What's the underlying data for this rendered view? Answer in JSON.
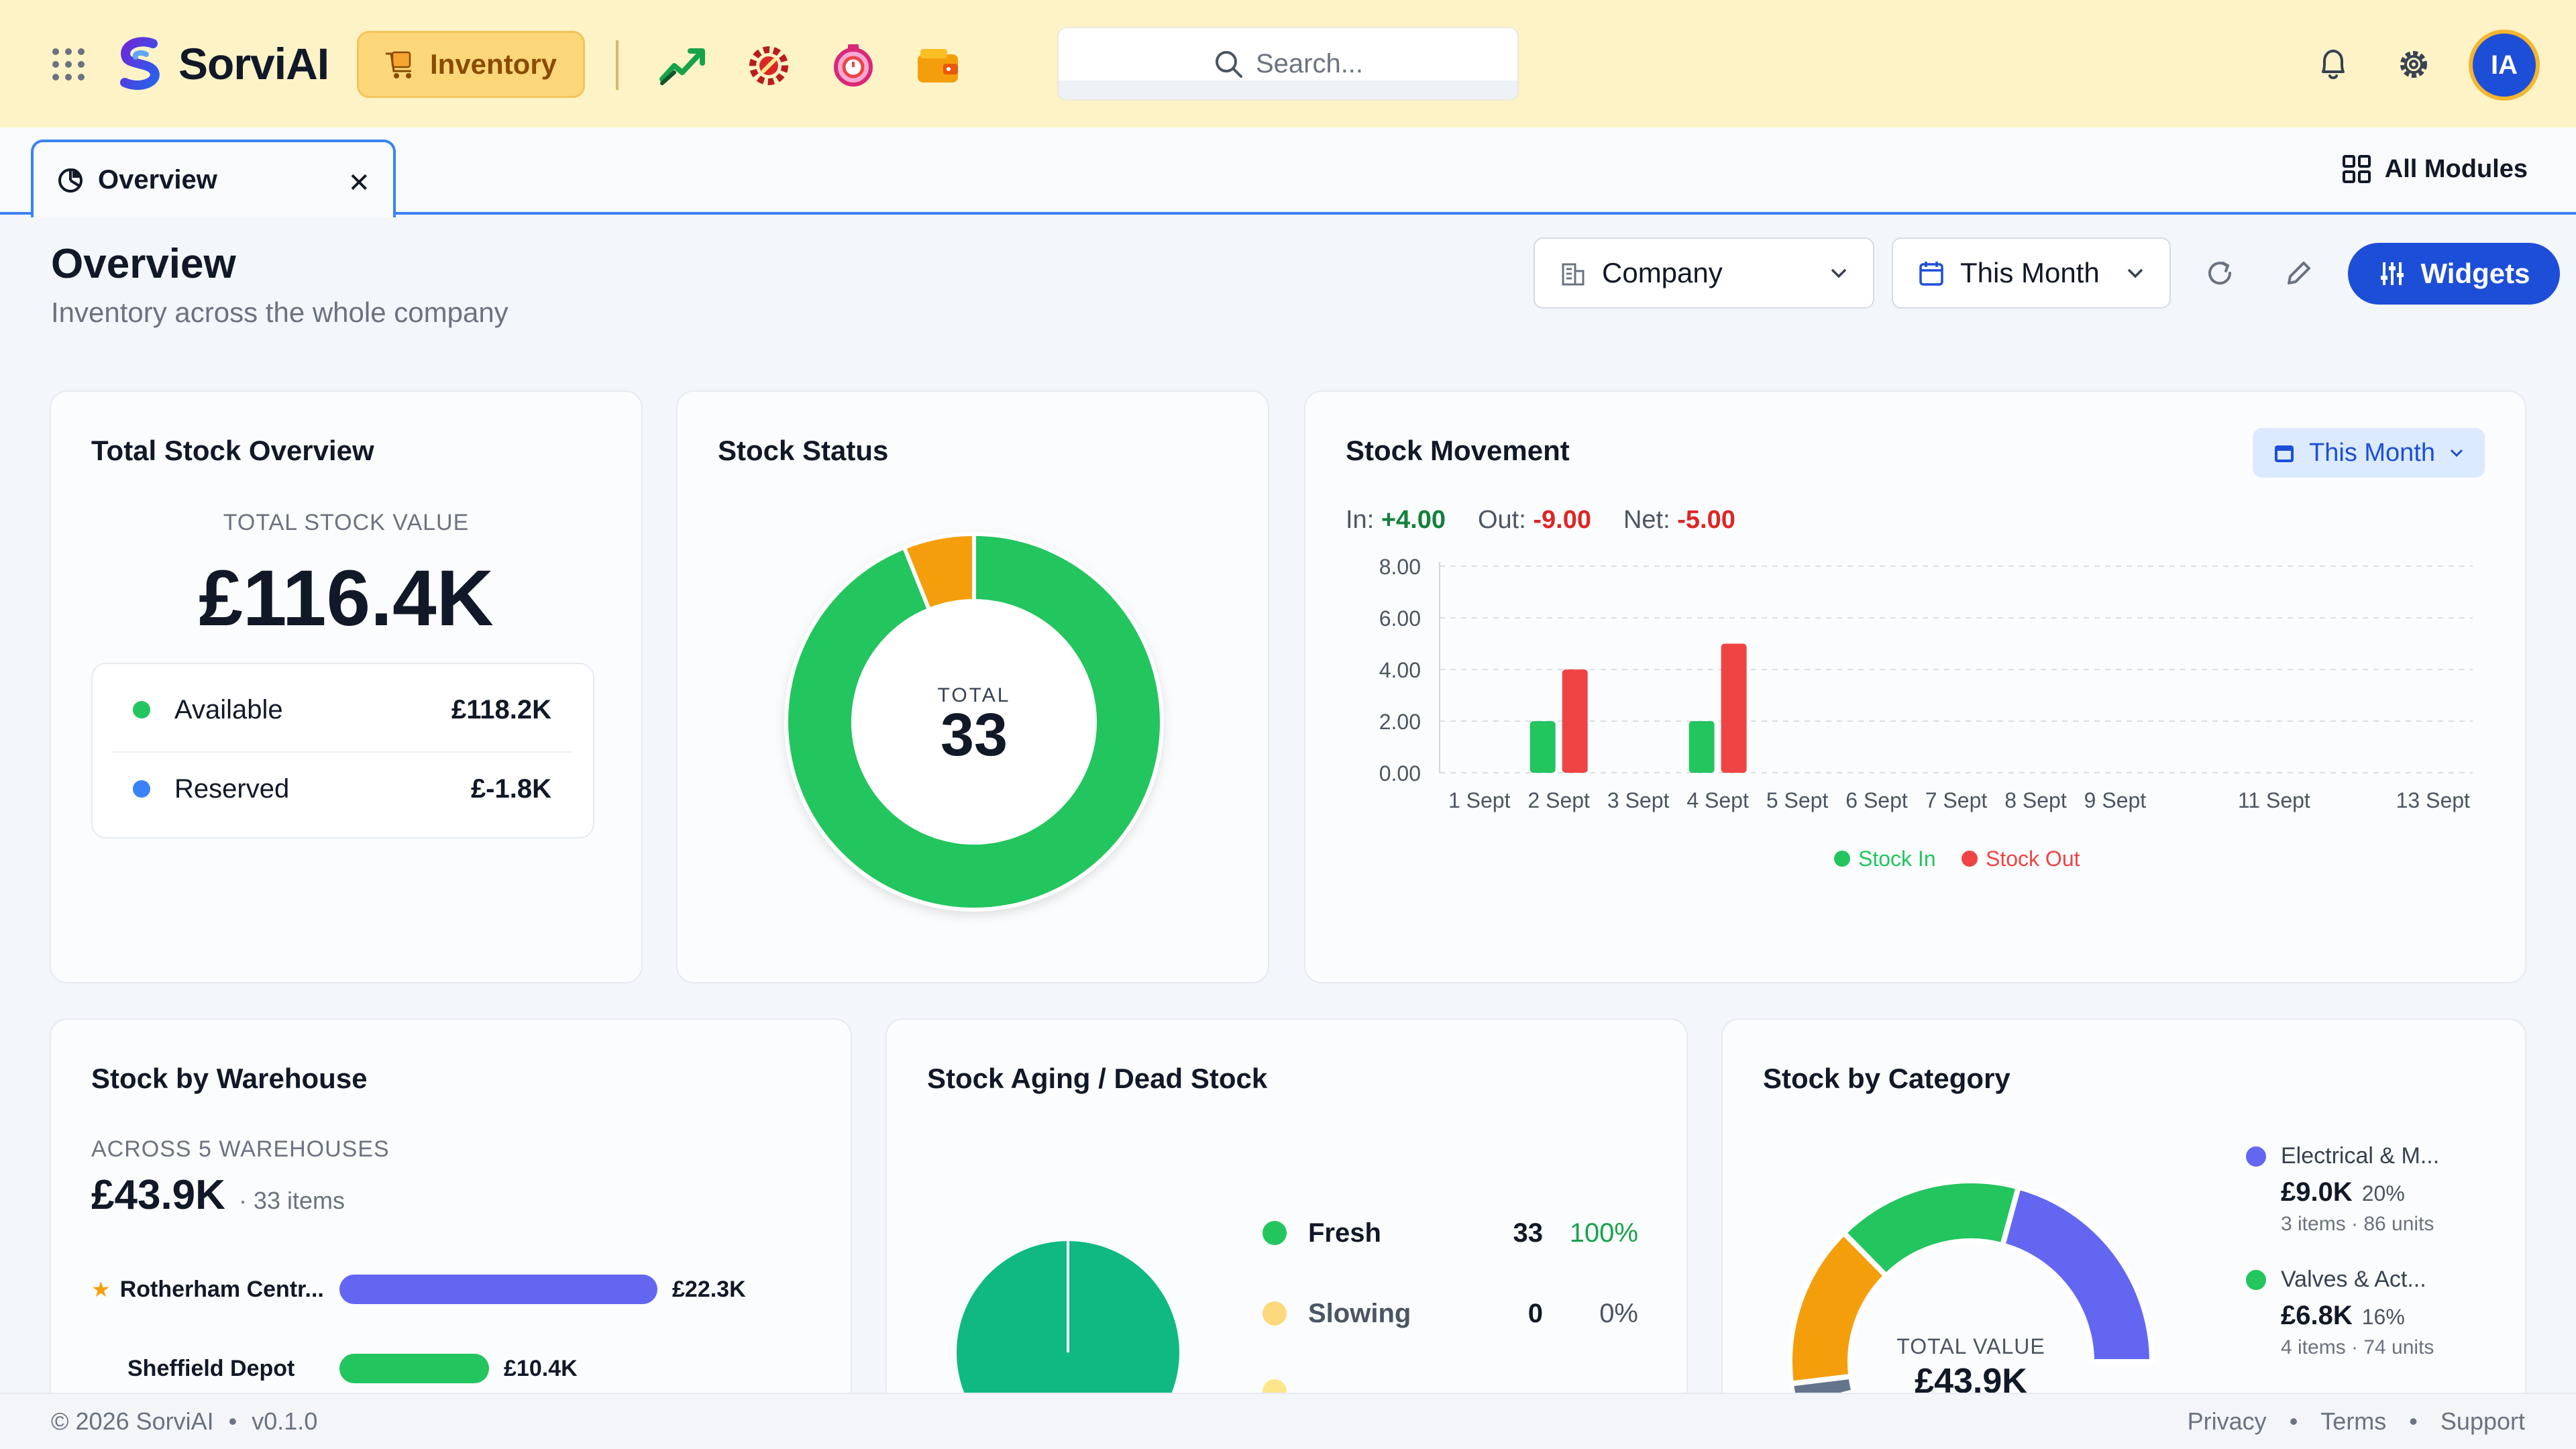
{
  "header": {
    "brand": "SorviAI",
    "module": "Inventory",
    "search_placeholder": "Search...",
    "avatar_initials": "IA",
    "app_icons": [
      "trend-chart-icon",
      "gear-wrench-icon",
      "timer-badge-icon",
      "wallet-icon"
    ]
  },
  "tabs": [
    {
      "label": "Overview"
    }
  ],
  "all_modules_label": "All Modules",
  "page": {
    "title": "Overview",
    "subtitle": "Inventory across the whole company",
    "filter_company": "Company",
    "filter_period": "This Month",
    "widgets_label": "Widgets"
  },
  "total_stock": {
    "title": "Total Stock Overview",
    "eyebrow": "TOTAL STOCK VALUE",
    "value": "£116.4K",
    "rows": [
      {
        "label": "Available",
        "value": "£118.2K",
        "color": "#22c55e"
      },
      {
        "label": "Reserved",
        "value": "£-1.8K",
        "color": "#3b82f6"
      }
    ]
  },
  "stock_status": {
    "title": "Stock Status",
    "center_label": "TOTAL",
    "center_value": "33",
    "segments": [
      {
        "value": 31,
        "color": "#22c55e"
      },
      {
        "value": 2,
        "color": "#f59e0b"
      }
    ]
  },
  "stock_movement": {
    "title": "Stock Movement",
    "range_label": "This Month",
    "in_label": "In:",
    "in_value": "+4.00",
    "out_label": "Out:",
    "out_value": "-9.00",
    "net_label": "Net:",
    "net_value": "-5.00"
  },
  "chart_data": {
    "type": "bar",
    "categories": [
      "1 Sept",
      "2 Sept",
      "3 Sept",
      "4 Sept",
      "5 Sept",
      "6 Sept",
      "7 Sept",
      "8 Sept",
      "9 Sept",
      "11 Sept",
      "13 Sept"
    ],
    "x_positions": [
      0,
      1,
      2,
      3,
      4,
      5,
      6,
      7,
      8,
      10,
      12
    ],
    "series": [
      {
        "name": "Stock In",
        "color": "#22c55e",
        "values": [
          0,
          2,
          0,
          2,
          0,
          0,
          0,
          0,
          0,
          0,
          0
        ]
      },
      {
        "name": "Stock Out",
        "color": "#ef4444",
        "values": [
          0,
          4,
          0,
          5,
          0,
          0,
          0,
          0,
          0,
          0,
          0
        ]
      }
    ],
    "yticks": [
      "8.00",
      "6.00",
      "4.00",
      "2.00",
      "0.00"
    ],
    "ylim": [
      0,
      8
    ],
    "grid": true,
    "legend_position": "bottom"
  },
  "warehouse": {
    "title": "Stock by Warehouse",
    "eyebrow": "ACROSS 5 WAREHOUSES",
    "value": "£43.9K",
    "items_label": "· 33 items",
    "rows": [
      {
        "name": "Rotherham Centr...",
        "value": "£22.3K",
        "share": 1.0,
        "color": "#6366f1",
        "starred": true
      },
      {
        "name": "Sheffield Depot",
        "value": "£10.4K",
        "share": 0.47,
        "color": "#22c55e",
        "starred": false
      }
    ]
  },
  "aging": {
    "title": "Stock Aging / Dead Stock",
    "rows": [
      {
        "name": "Fresh",
        "count": "33",
        "pct": "100%",
        "color": "#22c55e",
        "pct_color": "#16a34a"
      },
      {
        "name": "Slowing",
        "count": "0",
        "pct": "0%",
        "color": "#fcd97d",
        "pct_color": "#4b5563"
      }
    ],
    "pie_color": "#10b981"
  },
  "category": {
    "title": "Stock by Category",
    "center_label": "TOTAL VALUE",
    "center_value": "£43.9K",
    "segments": [
      {
        "value": 2,
        "color": "#64748b"
      },
      {
        "value": 14,
        "color": "#f59e0b"
      },
      {
        "value": 16,
        "color": "#22c55e"
      },
      {
        "value": 20,
        "color": "#6366f1"
      }
    ],
    "items": [
      {
        "name": "Electrical & M...",
        "value": "£9.0K",
        "pct": "20%",
        "meta": "3 items · 86 units",
        "color": "#6366f1"
      },
      {
        "name": "Valves & Act...",
        "value": "£6.8K",
        "pct": "16%",
        "meta": "4 items · 74 units",
        "color": "#22c55e"
      }
    ]
  },
  "footer": {
    "copyright": "© 2026 SorviAI",
    "version": "v0.1.0",
    "links": [
      "Privacy",
      "Terms",
      "Support"
    ]
  }
}
